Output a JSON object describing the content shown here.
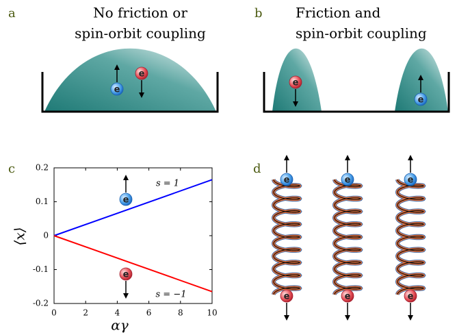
{
  "panels": [
    {
      "label": "a",
      "title_lines": [
        "No friction or",
        "spin-orbit coupling"
      ]
    },
    {
      "label": "b",
      "title_lines": [
        "Friction  and",
        "spin-orbit coupling"
      ]
    },
    {
      "label": "c"
    },
    {
      "label": "d"
    }
  ],
  "electron_label": "e",
  "chart_data": {
    "type": "line",
    "xlabel": "αγ",
    "ylabel": "⟨x⟩",
    "x": [
      0,
      10
    ],
    "series": [
      {
        "name": "s = 1",
        "color": "#0000ff",
        "values": [
          0,
          0.165
        ]
      },
      {
        "name": "s = −1",
        "color": "#ff0000",
        "values": [
          0,
          -0.165
        ]
      }
    ],
    "xlim": [
      0,
      10
    ],
    "ylim": [
      -0.2,
      0.2
    ],
    "xticks": [
      0,
      2,
      4,
      6,
      8,
      10
    ],
    "yticks": [
      -0.2,
      -0.1,
      0,
      0.1,
      0.2
    ]
  }
}
